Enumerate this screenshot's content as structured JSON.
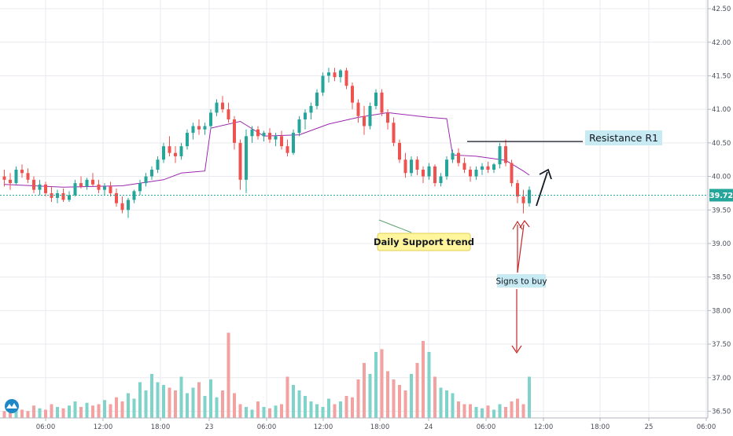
{
  "chart_data": {
    "type": "candlestick",
    "y_axis": {
      "range": [
        36.4,
        42.6
      ],
      "ticks": [
        "36.50",
        "37.00",
        "37.50",
        "38.00",
        "38.50",
        "39.00",
        "39.50",
        "40.00",
        "40.50",
        "41.00",
        "41.50",
        "42.00",
        "42.50"
      ]
    },
    "x_axis": {
      "ticks": [
        "06:00",
        "12:00",
        "18:00",
        "23",
        "06:00",
        "12:00",
        "18:00",
        "24",
        "06:00",
        "12:00",
        "18:00",
        "25",
        "06:00"
      ]
    },
    "current_price": "39.72",
    "ohlc": [
      [
        40.0,
        40.1,
        39.85,
        39.95
      ],
      [
        39.95,
        40.05,
        39.8,
        39.9
      ],
      [
        39.9,
        40.15,
        39.88,
        40.1
      ],
      [
        40.1,
        40.18,
        39.98,
        40.05
      ],
      [
        40.05,
        40.12,
        39.9,
        39.95
      ],
      [
        39.95,
        40.0,
        39.75,
        39.8
      ],
      [
        39.8,
        39.95,
        39.72,
        39.88
      ],
      [
        39.88,
        39.92,
        39.7,
        39.75
      ],
      [
        39.75,
        39.85,
        39.62,
        39.68
      ],
      [
        39.68,
        39.8,
        39.6,
        39.75
      ],
      [
        39.75,
        39.82,
        39.62,
        39.65
      ],
      [
        39.65,
        39.78,
        39.62,
        39.72
      ],
      [
        39.72,
        39.95,
        39.7,
        39.9
      ],
      [
        39.9,
        40.0,
        39.82,
        39.85
      ],
      [
        39.85,
        39.98,
        39.8,
        39.95
      ],
      [
        39.95,
        40.05,
        39.85,
        39.88
      ],
      [
        39.88,
        39.95,
        39.75,
        39.8
      ],
      [
        39.8,
        39.9,
        39.72,
        39.85
      ],
      [
        39.85,
        39.92,
        39.7,
        39.75
      ],
      [
        39.75,
        39.82,
        39.55,
        39.6
      ],
      [
        39.6,
        39.7,
        39.45,
        39.5
      ],
      [
        39.5,
        39.68,
        39.38,
        39.65
      ],
      [
        39.65,
        39.8,
        39.6,
        39.78
      ],
      [
        39.78,
        39.95,
        39.72,
        39.9
      ],
      [
        39.9,
        40.05,
        39.85,
        40.0
      ],
      [
        40.0,
        40.15,
        39.95,
        40.1
      ],
      [
        40.1,
        40.3,
        40.05,
        40.25
      ],
      [
        40.25,
        40.5,
        40.2,
        40.45
      ],
      [
        40.45,
        40.6,
        40.3,
        40.35
      ],
      [
        40.35,
        40.45,
        40.2,
        40.3
      ],
      [
        40.3,
        40.5,
        40.25,
        40.45
      ],
      [
        40.45,
        40.7,
        40.4,
        40.65
      ],
      [
        40.65,
        40.8,
        40.55,
        40.75
      ],
      [
        40.75,
        40.85,
        40.62,
        40.7
      ],
      [
        40.7,
        40.8,
        40.62,
        40.75
      ],
      [
        40.75,
        41.0,
        40.7,
        40.95
      ],
      [
        40.95,
        41.15,
        40.9,
        41.1
      ],
      [
        41.1,
        41.2,
        40.95,
        41.0
      ],
      [
        41.0,
        41.1,
        40.8,
        40.85
      ],
      [
        40.85,
        40.9,
        40.4,
        40.5
      ],
      [
        40.5,
        40.55,
        39.8,
        39.95
      ],
      [
        39.95,
        40.7,
        39.75,
        40.6
      ],
      [
        40.6,
        40.75,
        40.5,
        40.7
      ],
      [
        40.7,
        40.75,
        40.55,
        40.6
      ],
      [
        40.6,
        40.68,
        40.52,
        40.65
      ],
      [
        40.65,
        40.72,
        40.5,
        40.55
      ],
      [
        40.55,
        40.65,
        40.45,
        40.6
      ],
      [
        40.6,
        40.68,
        40.4,
        40.45
      ],
      [
        40.45,
        40.55,
        40.3,
        40.35
      ],
      [
        40.35,
        40.7,
        40.32,
        40.65
      ],
      [
        40.65,
        40.9,
        40.6,
        40.85
      ],
      [
        40.85,
        41.0,
        40.7,
        40.95
      ],
      [
        40.95,
        41.1,
        40.85,
        41.05
      ],
      [
        41.05,
        41.3,
        41.0,
        41.25
      ],
      [
        41.25,
        41.55,
        41.2,
        41.5
      ],
      [
        41.5,
        41.62,
        41.4,
        41.55
      ],
      [
        41.55,
        41.62,
        41.42,
        41.48
      ],
      [
        41.48,
        41.6,
        41.4,
        41.58
      ],
      [
        41.58,
        41.62,
        41.3,
        41.35
      ],
      [
        41.35,
        41.4,
        41.0,
        41.1
      ],
      [
        41.1,
        41.15,
        40.8,
        40.9
      ],
      [
        40.9,
        41.05,
        40.62,
        40.75
      ],
      [
        40.75,
        41.1,
        40.7,
        41.05
      ],
      [
        41.05,
        41.3,
        41.0,
        41.25
      ],
      [
        41.25,
        41.3,
        40.9,
        40.95
      ],
      [
        40.95,
        41.0,
        40.7,
        40.8
      ],
      [
        40.8,
        40.88,
        40.45,
        40.5
      ],
      [
        40.5,
        40.55,
        40.2,
        40.25
      ],
      [
        40.25,
        40.35,
        39.98,
        40.05
      ],
      [
        40.05,
        40.3,
        40.0,
        40.25
      ],
      [
        40.25,
        40.3,
        40.02,
        40.1
      ],
      [
        40.1,
        40.15,
        39.9,
        40.0
      ],
      [
        40.0,
        40.2,
        39.95,
        40.15
      ],
      [
        40.15,
        40.18,
        39.85,
        39.9
      ],
      [
        39.9,
        40.05,
        39.85,
        40.0
      ],
      [
        40.0,
        40.3,
        39.95,
        40.25
      ],
      [
        40.25,
        40.4,
        40.2,
        40.35
      ],
      [
        40.35,
        40.42,
        40.15,
        40.2
      ],
      [
        40.2,
        40.28,
        40.05,
        40.1
      ],
      [
        40.1,
        40.15,
        39.92,
        40.0
      ],
      [
        40.0,
        40.15,
        39.95,
        40.1
      ],
      [
        40.1,
        40.2,
        40.02,
        40.15
      ],
      [
        40.15,
        40.22,
        40.05,
        40.1
      ],
      [
        40.1,
        40.2,
        40.05,
        40.18
      ],
      [
        40.18,
        40.5,
        40.12,
        40.45
      ],
      [
        40.45,
        40.55,
        40.15,
        40.2
      ],
      [
        40.2,
        40.25,
        39.85,
        39.9
      ],
      [
        39.9,
        39.95,
        39.6,
        39.7
      ],
      [
        39.7,
        39.8,
        39.45,
        39.6
      ],
      [
        39.6,
        39.85,
        39.55,
        39.8
      ]
    ],
    "moving_average": [
      [
        0,
        39.88
      ],
      [
        10,
        39.84
      ],
      [
        20,
        39.86
      ],
      [
        27,
        39.95
      ],
      [
        30,
        40.05
      ],
      [
        34,
        40.08
      ],
      [
        35,
        40.72
      ],
      [
        40,
        40.82
      ],
      [
        44,
        40.6
      ],
      [
        50,
        40.62
      ],
      [
        55,
        40.78
      ],
      [
        60,
        40.88
      ],
      [
        65,
        40.95
      ],
      [
        72,
        40.88
      ],
      [
        75,
        40.86
      ],
      [
        76,
        40.32
      ],
      [
        80,
        40.3
      ],
      [
        85,
        40.24
      ],
      [
        88,
        40.08
      ],
      [
        89,
        40.02
      ]
    ],
    "volume": [
      0.05,
      0.04,
      0.08,
      0.06,
      0.05,
      0.09,
      0.07,
      0.06,
      0.1,
      0.08,
      0.07,
      0.09,
      0.12,
      0.08,
      0.11,
      0.09,
      0.1,
      0.13,
      0.1,
      0.15,
      0.12,
      0.18,
      0.14,
      0.26,
      0.2,
      0.32,
      0.26,
      0.24,
      0.22,
      0.2,
      0.3,
      0.18,
      0.22,
      0.26,
      0.16,
      0.28,
      0.15,
      0.2,
      0.62,
      0.18,
      0.1,
      0.08,
      0.06,
      0.12,
      0.08,
      0.07,
      0.09,
      0.1,
      0.3,
      0.24,
      0.2,
      0.16,
      0.12,
      0.1,
      0.08,
      0.14,
      0.1,
      0.12,
      0.16,
      0.15,
      0.28,
      0.4,
      0.32,
      0.48,
      0.5,
      0.34,
      0.28,
      0.24,
      0.2,
      0.32,
      0.4,
      0.56,
      0.48,
      0.3,
      0.22,
      0.2,
      0.18,
      0.12,
      0.1,
      0.1,
      0.08,
      0.07,
      0.09,
      0.06,
      0.1,
      0.08,
      0.12,
      0.14,
      0.1,
      0.3
    ],
    "resistance_level": 40.52,
    "annotations": {
      "resistance": "Resistance R1",
      "support": "Daily Support trend",
      "signal": "Signs to buy"
    }
  }
}
